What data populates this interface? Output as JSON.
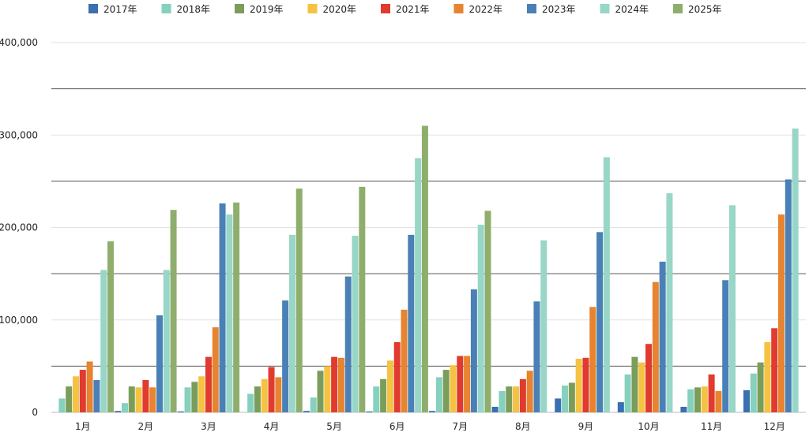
{
  "chart_data": {
    "type": "bar",
    "categories": [
      "1月",
      "2月",
      "3月",
      "4月",
      "5月",
      "6月",
      "7月",
      "8月",
      "9月",
      "10月",
      "11月",
      "12月"
    ],
    "series": [
      {
        "name": "2017年",
        "color": "#3a6fb0",
        "values": [
          0,
          1500,
          1000,
          0,
          1500,
          1000,
          1500,
          6000,
          15000,
          11000,
          6000,
          24000
        ]
      },
      {
        "name": "2018年",
        "color": "#86d0be",
        "values": [
          15000,
          10000,
          27000,
          20000,
          16000,
          28000,
          38000,
          23000,
          29000,
          41000,
          25000,
          42000
        ]
      },
      {
        "name": "2019年",
        "color": "#7a9e5a",
        "values": [
          28000,
          28000,
          33000,
          28000,
          45000,
          36000,
          46000,
          28000,
          32000,
          60000,
          27000,
          54000
        ]
      },
      {
        "name": "2020年",
        "color": "#f5c242",
        "values": [
          39000,
          27000,
          39000,
          36000,
          50000,
          56000,
          51000,
          28000,
          58000,
          54000,
          28000,
          76000
        ]
      },
      {
        "name": "2021年",
        "color": "#e03b2e",
        "values": [
          46000,
          35000,
          60000,
          49000,
          60000,
          76000,
          61000,
          36000,
          59000,
          74000,
          41000,
          91000
        ]
      },
      {
        "name": "2022年",
        "color": "#e8832f",
        "values": [
          55000,
          27000,
          92000,
          38000,
          59000,
          111000,
          61000,
          45000,
          114000,
          141000,
          23000,
          214000
        ]
      },
      {
        "name": "2023年",
        "color": "#4a80b6",
        "values": [
          35000,
          105000,
          226000,
          121000,
          147000,
          192000,
          133000,
          120000,
          195000,
          163000,
          143000,
          252000
        ]
      },
      {
        "name": "2024年",
        "color": "#98d6c7",
        "values": [
          154000,
          154000,
          214000,
          192000,
          191000,
          275000,
          203000,
          186000,
          276000,
          237000,
          224000,
          307000
        ]
      },
      {
        "name": "2025年",
        "color": "#8fae6d",
        "values": [
          185000,
          219000,
          227000,
          242000,
          244000,
          310000,
          218000,
          null,
          null,
          null,
          null,
          null
        ]
      }
    ],
    "ylim": [
      0,
      400000
    ],
    "yticks": [
      "0",
      "100,000",
      "200,000",
      "300,000",
      "400,000"
    ],
    "grid": true,
    "legend": "top"
  }
}
